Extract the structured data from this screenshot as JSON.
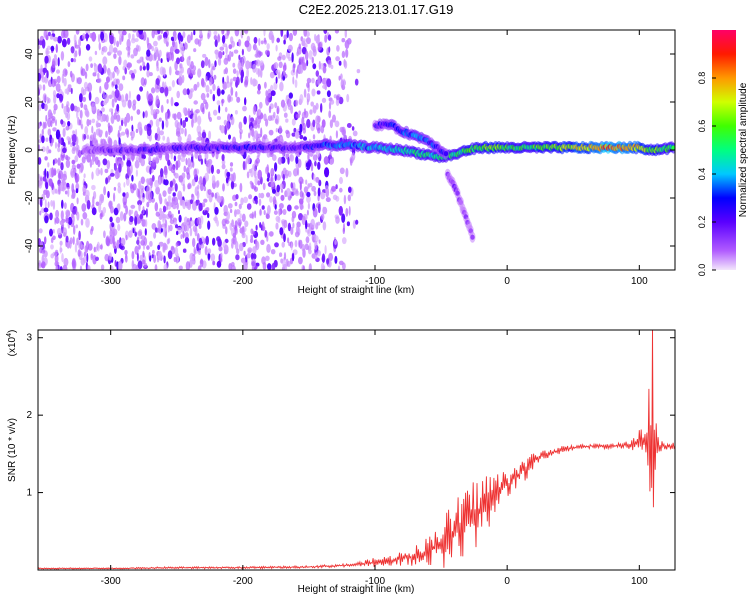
{
  "title": "C2E2.2025.213.01.17.G19",
  "chart_data": [
    {
      "type": "heatmap",
      "xlabel": "Height of straight line (km)",
      "ylabel": "Frequency (Hz)",
      "xlim": [
        -355,
        127
      ],
      "ylim": [
        -50,
        50
      ],
      "x_ticks": [
        -300,
        -200,
        -100,
        0,
        100
      ],
      "y_ticks": [
        -40,
        -20,
        0,
        20,
        40
      ],
      "colorbar": {
        "label": "Normalized spectral amplitude",
        "range": [
          0,
          1
        ],
        "ticks": [
          "0.0",
          "0.2",
          "0.4",
          "0.6",
          "0.8"
        ],
        "tick_values": [
          0.0,
          0.2,
          0.4,
          0.6,
          0.8
        ],
        "colors": [
          "#e9d0f5",
          "#7f00ff",
          "#0000ff",
          "#00bfff",
          "#00ff7f",
          "#7fff00",
          "#ffff00",
          "#ff7f00",
          "#ff0000",
          "#ff0066"
        ]
      },
      "ridges": [
        {
          "x": [
            -320,
            -280,
            -240,
            -200,
            -160,
            -140,
            -120,
            -100,
            -80,
            -60,
            -50,
            -40,
            -30,
            -20,
            -10,
            0,
            20,
            50,
            80,
            100,
            110,
            127
          ],
          "y": [
            0,
            0,
            1,
            1,
            1,
            2,
            2,
            1,
            0,
            -2,
            -3,
            -2,
            0,
            1,
            1,
            1,
            1,
            1,
            1,
            1,
            0,
            1
          ],
          "amp": [
            0.12,
            0.2,
            0.2,
            0.25,
            0.2,
            0.28,
            0.35,
            0.4,
            0.45,
            0.5,
            0.45,
            0.5,
            0.55,
            0.6,
            0.6,
            0.55,
            0.55,
            0.7,
            0.85,
            0.75,
            0.6,
            0.55
          ]
        },
        {
          "x": [
            -100,
            -90,
            -80,
            -70,
            -60,
            -50,
            -45
          ],
          "y": [
            10,
            11,
            8,
            6,
            4,
            0,
            -2
          ],
          "amp": [
            0.2,
            0.25,
            0.3,
            0.35,
            0.3,
            0.25,
            0.2
          ]
        },
        {
          "x": [
            -45,
            -40,
            -35,
            -30,
            -25
          ],
          "y": [
            -10,
            -15,
            -22,
            -30,
            -38
          ],
          "amp": [
            0.15,
            0.12,
            0.08,
            0.06,
            0.04
          ]
        }
      ]
    },
    {
      "type": "line",
      "xlabel": "Height of straight line (km)",
      "ylabel": "SNR (10 * v/v)",
      "y_multiplier": "(x10",
      "y_multiplier_exp": "4",
      "y_multiplier_close": ")",
      "xlim": [
        -355,
        127
      ],
      "ylim": [
        0,
        3.1
      ],
      "x_ticks": [
        -300,
        -200,
        -100,
        0,
        100
      ],
      "y_ticks": [
        1,
        2,
        3
      ],
      "color": "#ee3333",
      "series": [
        {
          "x": [
            -355,
            -300,
            -250,
            -200,
            -150,
            -120,
            -110,
            -100,
            -90,
            -80,
            -70,
            -60,
            -50,
            -40,
            -30,
            -20,
            -10,
            0,
            10,
            20,
            30,
            40,
            50,
            60,
            70,
            80,
            90,
            95,
            100,
            105,
            108,
            110,
            112,
            115,
            120,
            127
          ],
          "y": [
            0.02,
            0.02,
            0.03,
            0.03,
            0.04,
            0.06,
            0.08,
            0.1,
            0.12,
            0.15,
            0.18,
            0.25,
            0.35,
            0.45,
            0.6,
            0.8,
            0.95,
            1.1,
            1.25,
            1.4,
            1.5,
            1.55,
            1.58,
            1.6,
            1.6,
            1.6,
            1.62,
            1.62,
            1.65,
            1.7,
            1.6,
            1.5,
            1.6,
            1.6,
            1.6,
            1.6
          ],
          "noise": [
            0.005,
            0.005,
            0.008,
            0.008,
            0.01,
            0.015,
            0.02,
            0.04,
            0.04,
            0.06,
            0.08,
            0.12,
            0.2,
            0.28,
            0.3,
            0.3,
            0.2,
            0.12,
            0.1,
            0.08,
            0.05,
            0.03,
            0.02,
            0.02,
            0.02,
            0.02,
            0.03,
            0.05,
            0.1,
            0.25,
            0.6,
            1.2,
            0.3,
            0.05,
            0.03,
            0.03
          ]
        }
      ]
    }
  ]
}
